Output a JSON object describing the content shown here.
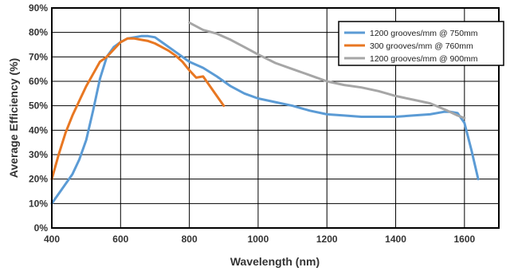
{
  "chart_data": {
    "type": "line",
    "title": "",
    "xlabel": "Wavelength (nm)",
    "ylabel": "Average Efficiency (%)",
    "xlim": [
      400,
      1700
    ],
    "ylim": [
      0,
      90
    ],
    "xticks": [
      400,
      600,
      800,
      1000,
      1200,
      1400,
      1600
    ],
    "xtick_labels": [
      "400",
      "600",
      "800",
      "1000",
      "1200",
      "1400",
      "1600"
    ],
    "yticks": [
      0,
      10,
      20,
      30,
      40,
      50,
      60,
      70,
      80,
      90
    ],
    "ytick_labels": [
      "0%",
      "10%",
      "20%",
      "30%",
      "40%",
      "50%",
      "60%",
      "70%",
      "80%",
      "90%"
    ],
    "grid": true,
    "legend_position": "top-right",
    "series": [
      {
        "name": "1200 grooves/mm @ 750mm",
        "color": "#5b9bd5",
        "x": [
          400,
          420,
          440,
          460,
          480,
          500,
          520,
          540,
          560,
          580,
          600,
          620,
          640,
          660,
          680,
          700,
          720,
          760,
          800,
          840,
          880,
          920,
          960,
          1000,
          1050,
          1100,
          1150,
          1200,
          1250,
          1300,
          1350,
          1400,
          1450,
          1500,
          1540,
          1560,
          1580,
          1600,
          1620,
          1640
        ],
        "y": [
          10,
          14,
          18,
          22,
          28,
          36,
          48,
          61,
          70,
          74,
          76,
          77.5,
          78,
          78.5,
          78.5,
          78,
          76,
          72,
          68,
          65.5,
          62,
          58,
          55,
          53,
          51.5,
          50,
          48,
          46.5,
          46,
          45.5,
          45.5,
          45.5,
          46,
          46.5,
          47.5,
          47.5,
          47,
          43,
          32,
          20
        ]
      },
      {
        "name": "300 grooves/mm @ 760mm",
        "color": "#e87722",
        "x": [
          400,
          420,
          440,
          460,
          480,
          500,
          520,
          540,
          560,
          580,
          600,
          620,
          640,
          660,
          680,
          700,
          720,
          740,
          760,
          780,
          800,
          820,
          840,
          860,
          880,
          900
        ],
        "y": [
          20,
          30,
          39,
          46,
          52,
          58,
          63,
          68,
          70,
          73,
          76,
          77.5,
          77.5,
          77,
          76.5,
          75.5,
          74,
          72.5,
          70.5,
          68,
          64.5,
          61.5,
          62,
          58,
          54,
          50
        ]
      },
      {
        "name": "1200 grooves/mm @ 900mm",
        "color": "#a6a6a6",
        "x": [
          800,
          840,
          880,
          920,
          960,
          1000,
          1050,
          1100,
          1150,
          1200,
          1250,
          1300,
          1350,
          1400,
          1450,
          1500,
          1550,
          1580,
          1600
        ],
        "y": [
          84,
          81,
          79.5,
          77,
          74,
          71,
          67.5,
          65,
          62.5,
          60,
          58.5,
          57.5,
          56,
          54,
          52.5,
          51,
          48,
          46,
          45
        ]
      }
    ]
  }
}
